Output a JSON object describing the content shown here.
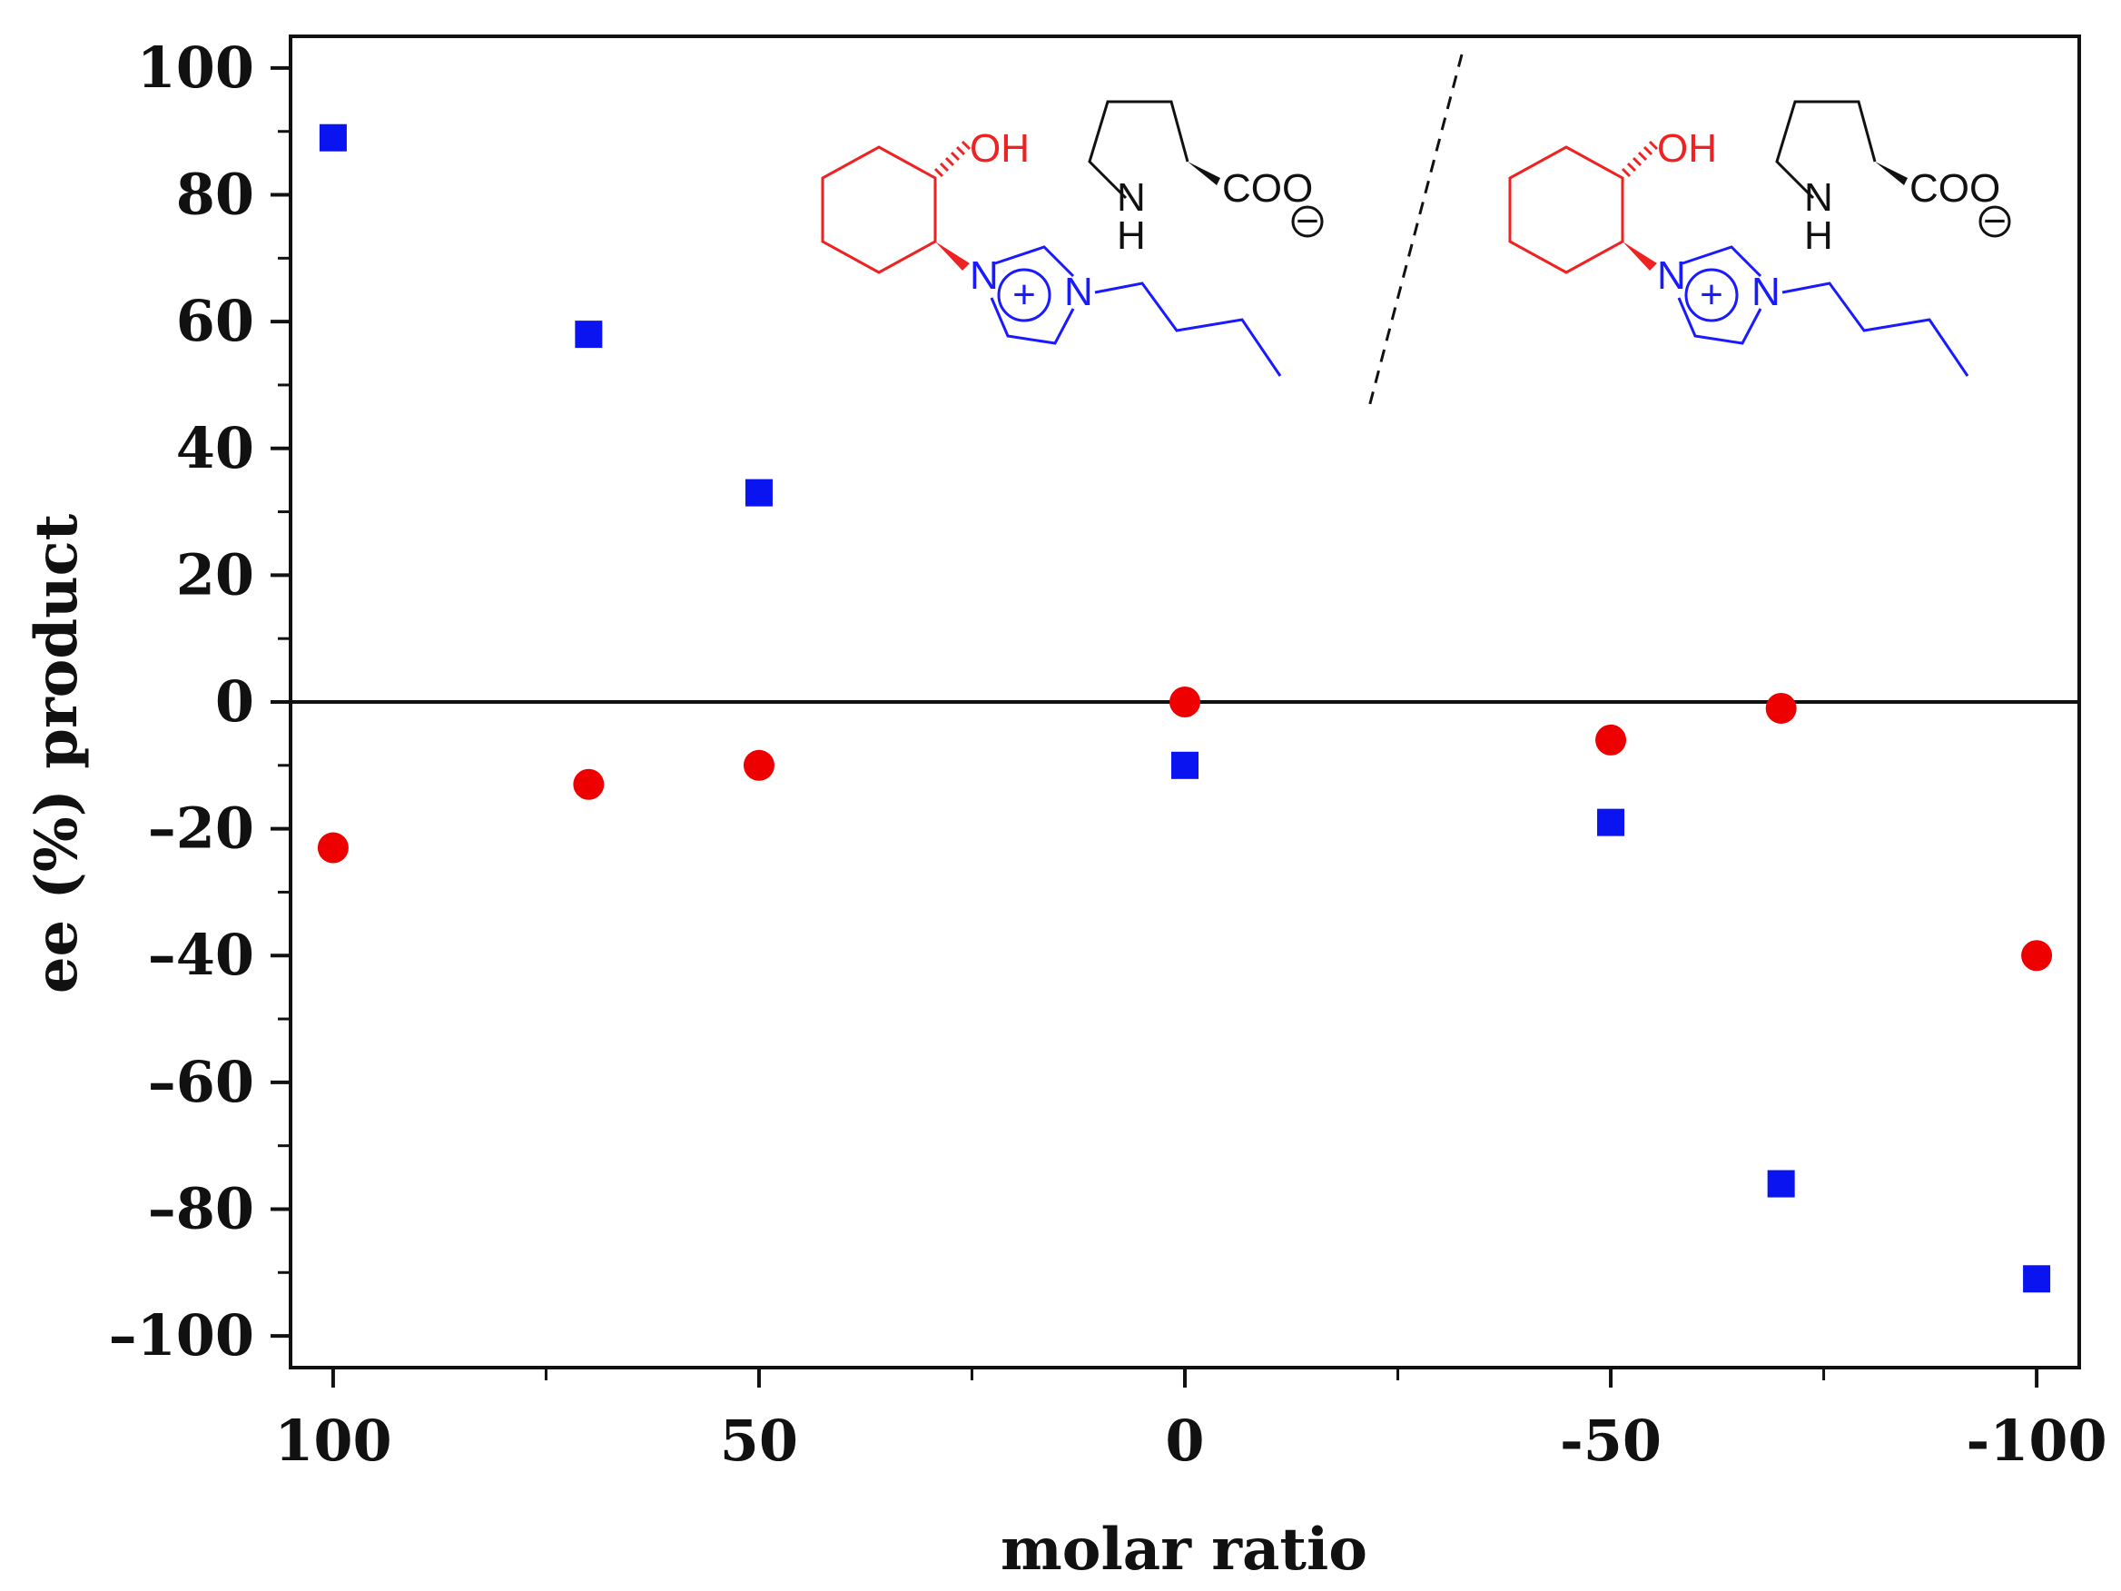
{
  "chart_data": {
    "type": "scatter",
    "xlabel": "molar ratio",
    "ylabel": "ee (%) product",
    "xlim": [
      105,
      -105
    ],
    "ylim": [
      -105,
      105
    ],
    "x_ticks": [
      100,
      50,
      0,
      -50,
      -100
    ],
    "x_tick_labels": [
      "100",
      "50",
      "0",
      "-50",
      "-100"
    ],
    "y_ticks": [
      100,
      80,
      60,
      40,
      20,
      0,
      -20,
      -40,
      -60,
      -80,
      -100
    ],
    "y_tick_labels": [
      "100",
      "80",
      "60",
      "40",
      "20",
      "0",
      "–20",
      "–40",
      "–60",
      "–80",
      "–100"
    ],
    "zero_line": true,
    "grid": false,
    "legend": "none",
    "series": [
      {
        "marker": "square",
        "color": "#0a14f0",
        "points": [
          {
            "x": 100,
            "y": 89
          },
          {
            "x": 70,
            "y": 58
          },
          {
            "x": 50,
            "y": 33
          },
          {
            "x": 0,
            "y": -10
          },
          {
            "x": -50,
            "y": -19
          },
          {
            "x": -70,
            "y": -76
          },
          {
            "x": -100,
            "y": -91
          }
        ]
      },
      {
        "marker": "circle",
        "color": "#ee0000",
        "points": [
          {
            "x": 100,
            "y": -23
          },
          {
            "x": 70,
            "y": -13
          },
          {
            "x": 50,
            "y": -10
          },
          {
            "x": 0,
            "y": 0
          },
          {
            "x": -50,
            "y": -6
          },
          {
            "x": -70,
            "y": -1
          },
          {
            "x": -100,
            "y": -40
          }
        ]
      }
    ],
    "annotations": {
      "structures": [
        {
          "cation_labels": [
            "OH",
            "N",
            "N",
            "+"
          ],
          "anion_labels": [
            "N",
            "H",
            "COO",
            "−"
          ]
        },
        {
          "cation_labels": [
            "OH",
            "N",
            "N",
            "+"
          ],
          "anion_labels": [
            "N",
            "H",
            "COO",
            "−"
          ]
        }
      ],
      "colors": {
        "cyclohexanol": "#ee2222",
        "imidazolium": "#1a1aff",
        "proline": "#111111"
      }
    }
  }
}
